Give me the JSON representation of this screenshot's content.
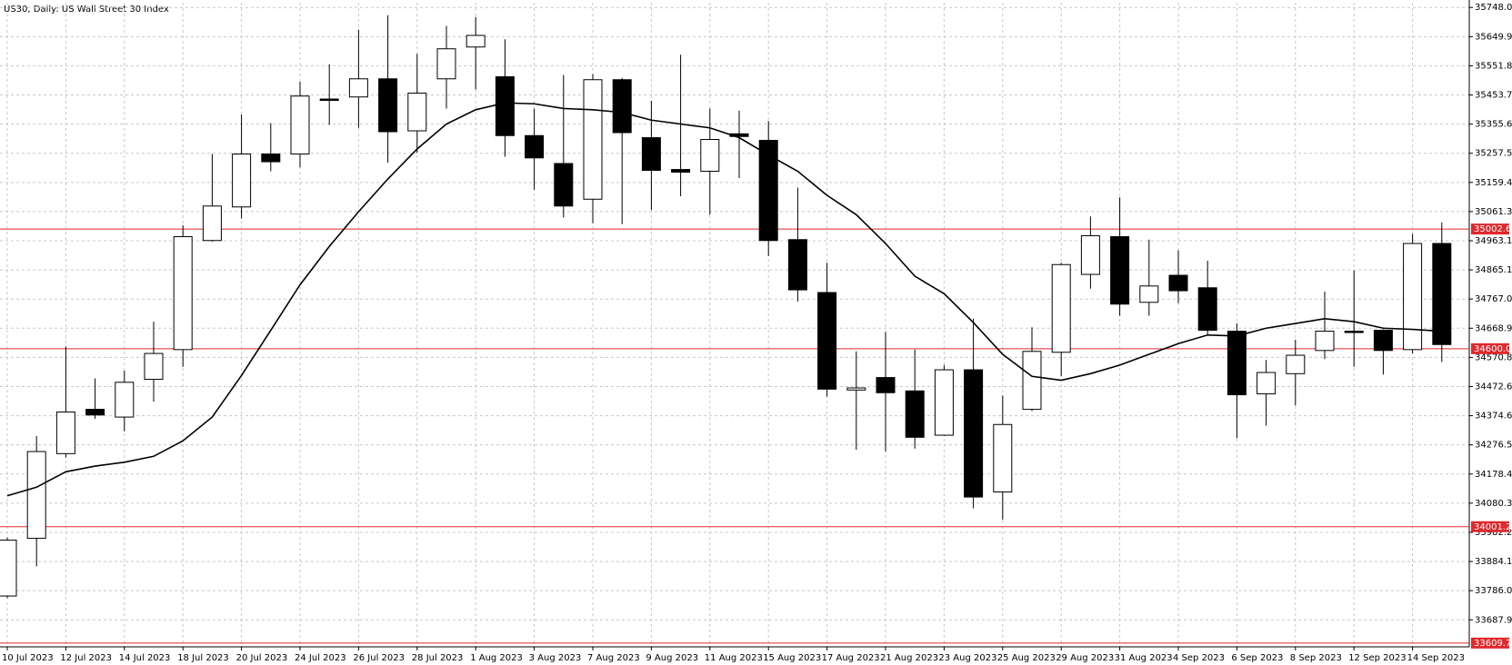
{
  "chart_data": {
    "type": "candlestick",
    "title": "US30, Daily:  US Wall Street 30 Index",
    "categories": [
      "10 Jul 2023",
      null,
      "12 Jul 2023",
      null,
      "14 Jul 2023",
      null,
      "18 Jul 2023",
      null,
      "20 Jul 2023",
      null,
      "24 Jul 2023",
      null,
      "26 Jul 2023",
      null,
      "28 Jul 2023",
      null,
      "1 Aug 2023",
      null,
      "3 Aug 2023",
      null,
      "7 Aug 2023",
      null,
      "9 Aug 2023",
      null,
      "11 Aug 2023",
      null,
      "15 Aug 2023",
      null,
      "17 Aug 2023",
      null,
      "21 Aug 2023",
      null,
      "23 Aug 2023",
      null,
      "25 Aug 2023",
      null,
      "29 Aug 2023",
      null,
      "31 Aug 2023",
      null,
      "4 Sep 2023",
      null,
      "6 Sep 2023",
      null,
      "8 Sep 2023",
      null,
      "12 Sep 2023",
      null,
      "14 Sep 2023",
      null
    ],
    "open": [
      33768,
      33962,
      34247,
      34396,
      34370,
      34497,
      34597,
      34964,
      35077,
      35255,
      35255,
      35440,
      35447,
      35508,
      35333,
      35508,
      35615,
      35515,
      35317,
      35223,
      35103,
      35505,
      35310,
      35203,
      35197,
      35323,
      35301,
      34967,
      34789,
      34461,
      34503,
      34458,
      34309,
      34529,
      34118,
      34396,
      34588,
      34850,
      34977,
      34756,
      34847,
      34805,
      34659,
      34448,
      34516,
      34594,
      34659,
      34662,
      34597,
      34954
    ],
    "high": [
      33965,
      34306,
      34607,
      34500,
      34526,
      34691,
      35015,
      35255,
      35388,
      35359,
      35498,
      35557,
      35673,
      35722,
      35592,
      35686,
      35716,
      35641,
      35408,
      35521,
      35524,
      35511,
      35434,
      35589,
      35408,
      35401,
      35366,
      35142,
      34889,
      34591,
      34656,
      34597,
      34545,
      34701,
      34442,
      34672,
      34889,
      35045,
      35109,
      34967,
      34931,
      34896,
      34685,
      34562,
      34630,
      34792,
      34863,
      34665,
      34986,
      35025
    ],
    "low": [
      33761,
      33868,
      34234,
      34364,
      34322,
      34422,
      34539,
      34960,
      35038,
      35197,
      35210,
      35353,
      35343,
      35226,
      35259,
      35408,
      35472,
      35246,
      35135,
      35041,
      35022,
      35019,
      35067,
      35113,
      35051,
      35174,
      34912,
      34759,
      34439,
      34260,
      34254,
      34264,
      34306,
      34063,
      34024,
      34390,
      34507,
      34802,
      34711,
      34711,
      34753,
      34646,
      34299,
      34341,
      34409,
      34565,
      34539,
      34513,
      34584,
      34555
    ],
    "close": [
      33956,
      34254,
      34387,
      34377,
      34487,
      34584,
      34977,
      35080,
      35255,
      35229,
      35450,
      35437,
      35508,
      35330,
      35460,
      35609,
      35654,
      35317,
      35242,
      35080,
      35505,
      35327,
      35200,
      35194,
      35304,
      35314,
      34964,
      34798,
      34464,
      34468,
      34452,
      34302,
      34529,
      34101,
      34345,
      34591,
      34883,
      34980,
      34750,
      34811,
      34795,
      34662,
      34445,
      34520,
      34578,
      34659,
      34656,
      34594,
      34954,
      34614
    ],
    "moving_average": [
      34105,
      34134,
      34186,
      34205,
      34218,
      34238,
      34290,
      34370,
      34510,
      34662,
      34815,
      34944,
      35061,
      35171,
      35272,
      35356,
      35404,
      35427,
      35424,
      35408,
      35404,
      35395,
      35369,
      35356,
      35343,
      35310,
      35252,
      35197,
      35116,
      35051,
      34954,
      34844,
      34785,
      34688,
      34581,
      34507,
      34494,
      34516,
      34545,
      34581,
      34617,
      34646,
      34643,
      34669,
      34685,
      34701,
      34691,
      34669,
      34665,
      34659
    ],
    "up_color": "#ffffff",
    "down_color": "#000000",
    "line_color": "#000000",
    "level_color": "#e0282d",
    "ylim": [
      33597,
      35764
    ],
    "yticks": [
      {
        "value": 35748,
        "label": "35748.0"
      },
      35649.9,
      35551.8,
      35453.7,
      35355.6,
      35257.5,
      35159.4,
      35061.3,
      34963.1,
      34865.1,
      {
        "value": 34767,
        "label": "34767.0"
      },
      34668.9,
      34570.8,
      34472.6,
      34374.6,
      34276.5,
      34178.4,
      34080.3,
      33982.2,
      33884.1,
      {
        "value": 33786,
        "label": "33786.0"
      },
      33687.9
    ],
    "levels": [
      35002.6,
      {
        "value": 34600,
        "label": "34600.0"
      },
      34001.2,
      33609.7
    ],
    "grid": true
  }
}
